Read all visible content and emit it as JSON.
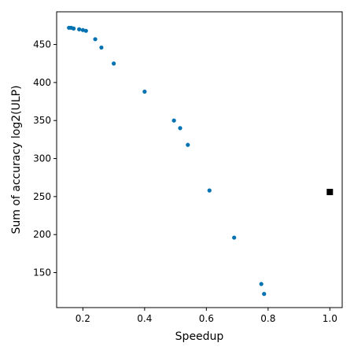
{
  "chart_data": {
    "type": "scatter",
    "title": "",
    "xlabel": "Speedup",
    "ylabel": "Sum of accuracy log2(ULP)",
    "xlim": [
      0.115,
      1.04
    ],
    "ylim": [
      104,
      493
    ],
    "xticks": [
      0.2,
      0.4,
      0.6,
      0.8,
      1.0
    ],
    "xtick_labels": [
      "0.2",
      "0.4",
      "0.6",
      "0.8",
      "1.0"
    ],
    "yticks": [
      150,
      200,
      250,
      300,
      350,
      400,
      450
    ],
    "ytick_labels": [
      "150",
      "200",
      "250",
      "300",
      "350",
      "400",
      "450"
    ],
    "grid": false,
    "series": [
      {
        "marker": "circle",
        "color": "#0072B2",
        "x": [
          0.155,
          0.162,
          0.17,
          0.188,
          0.2,
          0.21,
          0.24,
          0.26,
          0.3,
          0.4,
          0.495,
          0.515,
          0.54,
          0.61,
          0.69,
          0.778,
          0.787
        ],
        "y": [
          472,
          472,
          471,
          470,
          469,
          468,
          457,
          446,
          425,
          388,
          350,
          340,
          318,
          258,
          196,
          135,
          122
        ]
      },
      {
        "marker": "square",
        "color": "#000000",
        "x": [
          1.0
        ],
        "y": [
          256
        ]
      }
    ]
  }
}
